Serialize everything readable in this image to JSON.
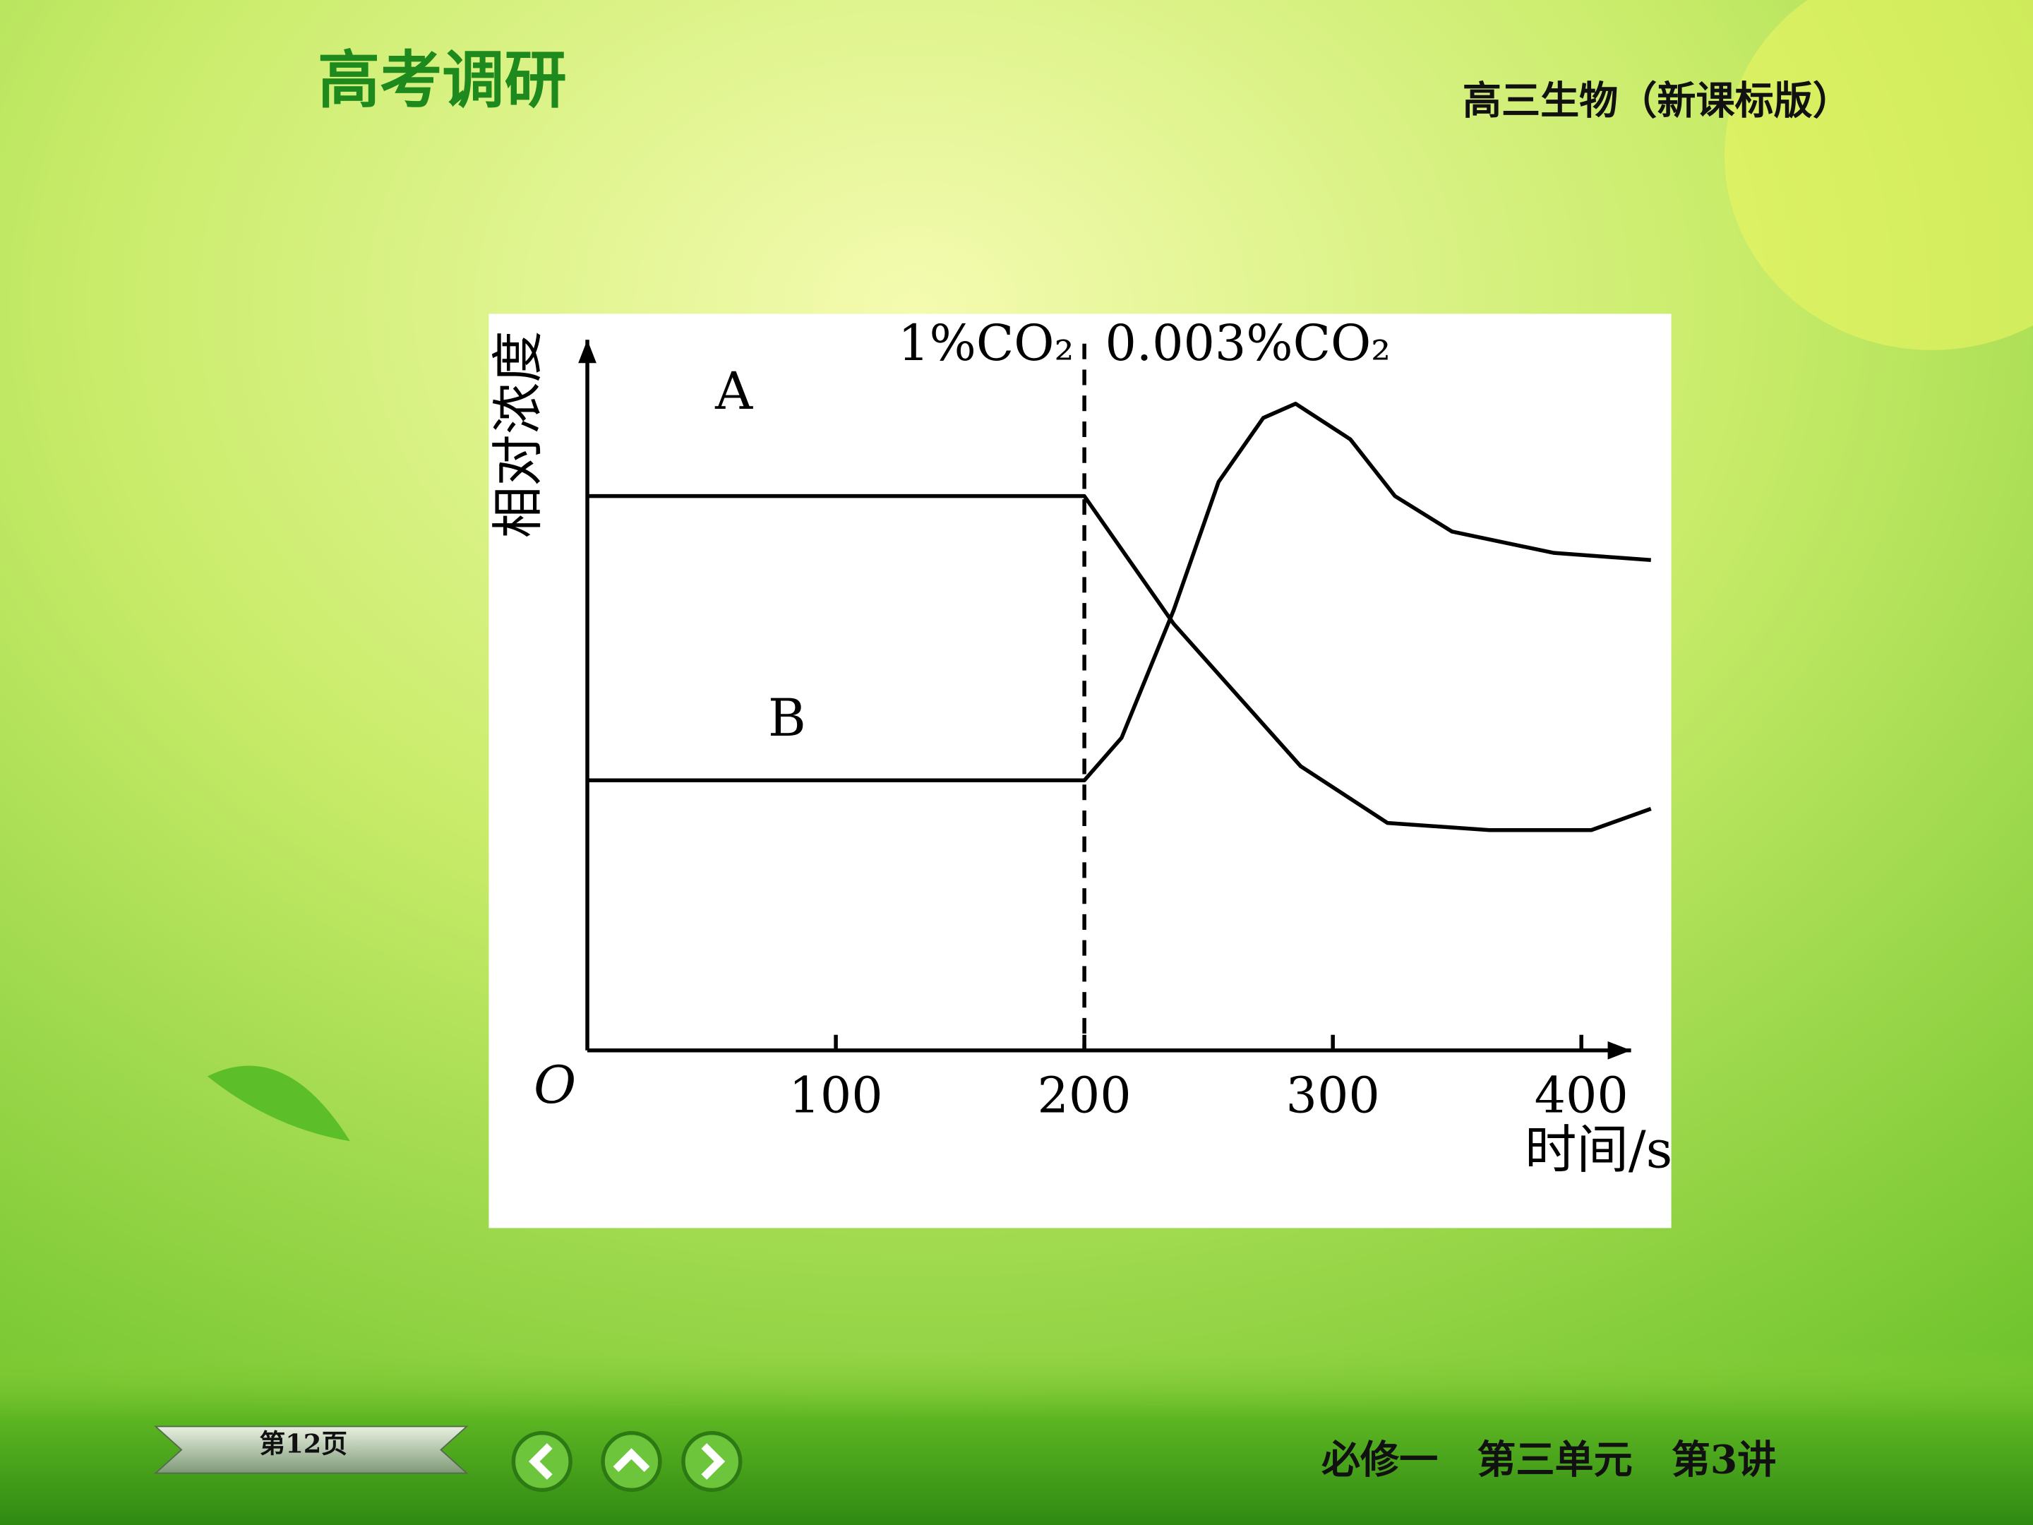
{
  "header": {
    "title": "高考调研",
    "subtitle": "高三生物（新课标版）"
  },
  "chart_data": {
    "type": "line",
    "y_label": "相对浓度",
    "x_label": "时间/s",
    "origin_label": "O",
    "annotations": [
      "1%CO₂",
      "0.003%CO₂"
    ],
    "xlim": [
      0,
      420
    ],
    "ylim": [
      0,
      1
    ],
    "xticks": [
      100,
      200,
      300,
      400
    ],
    "divider": 200,
    "color": "#000000",
    "series": [
      {
        "name": "A",
        "x": [
          0,
          200,
          236,
          287,
          322,
          363,
          404,
          428
        ],
        "values": [
          0.78,
          0.78,
          0.6,
          0.4,
          0.32,
          0.31,
          0.31,
          0.34
        ]
      },
      {
        "name": "B",
        "x": [
          0,
          200,
          215,
          236,
          254,
          272,
          285,
          307,
          325,
          348,
          389,
          428
        ],
        "values": [
          0.38,
          0.38,
          0.44,
          0.62,
          0.8,
          0.89,
          0.91,
          0.86,
          0.78,
          0.73,
          0.7,
          0.69
        ]
      }
    ]
  },
  "footer": {
    "page": "第12页",
    "section": "必修一　第三单元　第3讲"
  }
}
